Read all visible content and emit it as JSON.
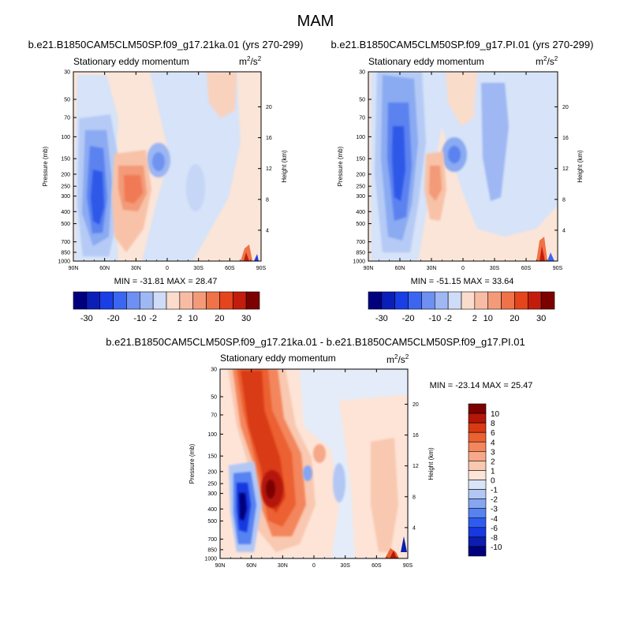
{
  "figure": {
    "season_title": "MAM"
  },
  "chart_data": [
    {
      "type": "heatmap",
      "id": "case",
      "title": "b.e21.B1850CAM5CLM50SP.f09_g17.21ka.01 (yrs 270-299)",
      "subtitle": "Stationary eddy momentum",
      "units": "m2/s2",
      "xlabel": "",
      "ylabel": "Pressure (mb)",
      "right_ylabel": "Height (km)",
      "x_ticks": [
        "90N",
        "60N",
        "30N",
        "0",
        "30S",
        "60S",
        "90S"
      ],
      "x_range": [
        90,
        -90
      ],
      "y_ticks": [
        30,
        50,
        70,
        100,
        150,
        200,
        250,
        300,
        400,
        500,
        700,
        850,
        1000
      ],
      "y_range": [
        30,
        1000
      ],
      "height_ticks": [
        4,
        8,
        12,
        16,
        20
      ],
      "min": -31.81,
      "max": 28.47,
      "stats_text": "MIN = -31.81  MAX =  28.47",
      "contour_levels": [
        -30,
        -25,
        -20,
        -15,
        -10,
        -5,
        -2,
        2,
        5,
        10,
        15,
        20,
        25,
        30
      ],
      "colorbar_labels": [
        "-30",
        "-20",
        "-10",
        "-2",
        "2",
        "10",
        "20",
        "30"
      ],
      "features": [
        {
          "lat": 64,
          "p": 320,
          "value": -32
        },
        {
          "lat": 40,
          "p": 260,
          "value": 18
        },
        {
          "lat": 15,
          "p": 155,
          "value": -10
        },
        {
          "lat": 5,
          "p": 250,
          "value": 4
        },
        {
          "lat": -60,
          "p": 960,
          "value": 15
        }
      ]
    },
    {
      "type": "heatmap",
      "id": "control",
      "title": "b.e21.B1850CAM5CLM50SP.f09_g17.PI.01 (yrs 270-299)",
      "subtitle": "Stationary eddy momentum",
      "units": "m2/s2",
      "xlabel": "",
      "ylabel": "Pressure (mb)",
      "right_ylabel": "Height (km)",
      "x_ticks": [
        "90N",
        "60N",
        "30N",
        "0",
        "30S",
        "60S",
        "90S"
      ],
      "x_range": [
        90,
        -90
      ],
      "y_ticks": [
        30,
        50,
        70,
        100,
        150,
        200,
        250,
        300,
        400,
        500,
        700,
        850,
        1000
      ],
      "y_range": [
        30,
        1000
      ],
      "height_ticks": [
        4,
        8,
        12,
        16,
        20
      ],
      "min": -51.15,
      "max": 33.64,
      "stats_text": "MIN = -51.15  MAX =  33.64",
      "contour_levels": [
        -30,
        -25,
        -20,
        -15,
        -10,
        -5,
        -2,
        2,
        5,
        10,
        15,
        20,
        25,
        30
      ],
      "colorbar_labels": [
        "-30",
        "-20",
        "-10",
        "-2",
        "2",
        "10",
        "20",
        "30"
      ],
      "features": [
        {
          "lat": 62,
          "p": 150,
          "value": -22
        },
        {
          "lat": 32,
          "p": 200,
          "value": 10
        },
        {
          "lat": 15,
          "p": 150,
          "value": -10
        },
        {
          "lat": 70,
          "p": 60,
          "value": -12
        },
        {
          "lat": -60,
          "p": 960,
          "value": 12
        }
      ]
    },
    {
      "type": "heatmap",
      "id": "difference",
      "title": "b.e21.B1850CAM5CLM50SP.f09_g17.21ka.01 - b.e21.B1850CAM5CLM50SP.f09_g17.PI.01",
      "subtitle": "Stationary eddy momentum",
      "units": "m2/s2",
      "xlabel": "",
      "ylabel": "Pressure (mb)",
      "right_ylabel": "Height (km)",
      "x_ticks": [
        "90N",
        "60N",
        "30N",
        "0",
        "30S",
        "60S",
        "90S"
      ],
      "x_range": [
        90,
        -90
      ],
      "y_ticks": [
        30,
        50,
        70,
        100,
        150,
        200,
        250,
        300,
        400,
        500,
        700,
        850,
        1000
      ],
      "y_range": [
        30,
        1000
      ],
      "height_ticks": [
        4,
        8,
        12,
        16,
        20
      ],
      "min": -23.14,
      "max": 25.47,
      "stats_text": "MIN = -23.14  MAX =  25.47",
      "contour_levels": [
        -10,
        -8,
        -6,
        -4,
        -3,
        -2,
        -1,
        0,
        1,
        2,
        3,
        4,
        6,
        8,
        10
      ],
      "colorbar_labels": [
        "10",
        "8",
        "6",
        "4",
        "3",
        "2",
        "1",
        "0",
        "-1",
        "-2",
        "-3",
        "-4",
        "-6",
        "-8",
        "-10"
      ],
      "features": [
        {
          "lat": 65,
          "p": 340,
          "value": -23
        },
        {
          "lat": 45,
          "p": 290,
          "value": 25
        },
        {
          "lat": 68,
          "p": 50,
          "value": 12
        },
        {
          "lat": 10,
          "p": 200,
          "value": -3
        },
        {
          "lat": -60,
          "p": 250,
          "value": 3
        },
        {
          "lat": -75,
          "p": 980,
          "value": 10
        }
      ]
    }
  ],
  "colors": {
    "palette_14": [
      "#00007f",
      "#0a1fb8",
      "#1a3ee6",
      "#3a66f2",
      "#6d90f2",
      "#9fb7f3",
      "#cfdcf7",
      "#fbdccc",
      "#f8bca4",
      "#f59a78",
      "#f07248",
      "#e4451c",
      "#c21d0c",
      "#7d0000"
    ],
    "palette_16": [
      "#00007f",
      "#0b1eb0",
      "#1838e0",
      "#2e5cf0",
      "#5682f2",
      "#86a6f2",
      "#b3c7f4",
      "#d9e4f8",
      "#fde4d7",
      "#f9c8b0",
      "#f6a888",
      "#f3865d",
      "#ec6130",
      "#d93a12",
      "#b41608",
      "#7d0000"
    ],
    "plot_background": "#ffffff"
  }
}
